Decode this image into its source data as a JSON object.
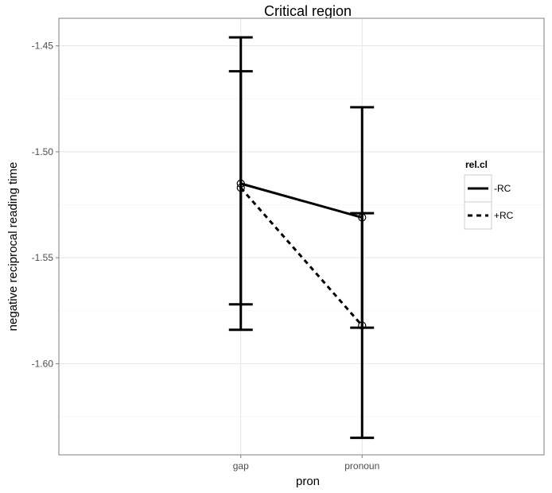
{
  "chart_data": {
    "type": "line",
    "title": "Critical region",
    "xlabel": "pron",
    "ylabel": "negative reciprocal reading time",
    "categories": [
      "gap",
      "pronoun"
    ],
    "ylim": [
      -1.643,
      -1.437
    ],
    "yticks": [
      -1.45,
      -1.5,
      -1.55,
      -1.6
    ],
    "ytick_labels": [
      "-1.45",
      "-1.50",
      "-1.55",
      "-1.60"
    ],
    "grid": true,
    "legend": {
      "title": "rel.cl",
      "position": "right"
    },
    "series": [
      {
        "name": "-RC",
        "linestyle": "solid",
        "values": [
          -1.515,
          -1.531
        ],
        "error_low": [
          -1.584,
          -1.583
        ],
        "error_high": [
          -1.446,
          -1.479
        ]
      },
      {
        "name": "+RC",
        "linestyle": "dashed",
        "values": [
          -1.517,
          -1.582
        ],
        "error_low": [
          -1.572,
          -1.635
        ],
        "error_high": [
          -1.462,
          -1.529
        ]
      }
    ]
  }
}
